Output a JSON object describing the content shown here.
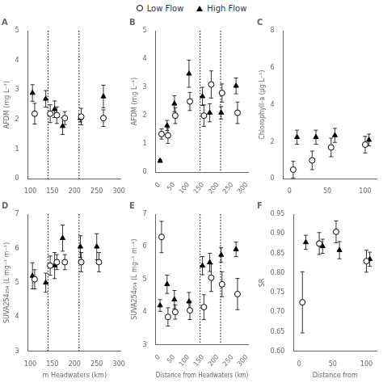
{
  "chart_data": [
    {
      "type": "scatter",
      "title": "A",
      "ylabel": "AFDM (mg L⁻¹)",
      "legend": "top",
      "grid": false,
      "xlim": [
        95,
        305
      ],
      "xticks": [
        100,
        150,
        200,
        250,
        300
      ],
      "ylim": [
        0,
        5
      ],
      "yticks": [
        0,
        1,
        2,
        3,
        4,
        5
      ],
      "vlines": [
        140,
        210
      ],
      "series": [
        {
          "name": "Low Flow",
          "color": "#000000",
          "marker": "circle",
          "x": [
            110,
            145,
            160,
            178,
            215,
            265
          ],
          "values": [
            2.2,
            2.2,
            2.15,
            2.05,
            2.1,
            2.05
          ],
          "yerr": [
            0.35,
            0.3,
            0.28,
            0.22,
            0.28,
            0.28
          ]
        },
        {
          "name": "High Flow",
          "color": "#000000",
          "marker": "triangle",
          "x": [
            105,
            135,
            155,
            173,
            213,
            265
          ],
          "values": [
            2.9,
            2.7,
            2.35,
            1.78,
            2.05,
            2.78
          ],
          "yerr": [
            0.28,
            0.28,
            0.28,
            0.28,
            0.13,
            0.38
          ]
        }
      ]
    },
    {
      "type": "scatter",
      "title": "B",
      "ylabel": "AFDM (mg L⁻¹)",
      "grid": false,
      "xlim": [
        -12,
        305
      ],
      "xticks": [
        0,
        50,
        100,
        150,
        200,
        250,
        300
      ],
      "ylim": [
        0,
        5
      ],
      "yticks": [
        0,
        1,
        2,
        3,
        4,
        5
      ],
      "vlines": [
        140,
        210
      ],
      "series": [
        {
          "name": "Low Flow",
          "color": "#000000",
          "marker": "circle",
          "x": [
            8,
            30,
            55,
            105,
            153,
            178,
            215,
            268
          ],
          "values": [
            1.35,
            1.3,
            2.0,
            2.5,
            2.0,
            3.1,
            2.8,
            2.1
          ],
          "yerr": [
            0.18,
            0.28,
            0.28,
            0.32,
            0.38,
            0.48,
            0.32,
            0.38
          ]
        },
        {
          "name": "High Flow",
          "color": "#000000",
          "marker": "triangle",
          "x": [
            3,
            27,
            52,
            102,
            148,
            173,
            212,
            263
          ],
          "values": [
            0.4,
            1.65,
            2.42,
            3.48,
            2.68,
            2.1,
            2.1,
            3.05
          ],
          "yerr": [
            0.05,
            0.18,
            0.28,
            0.48,
            0.32,
            0.32,
            0.22,
            0.28
          ]
        }
      ]
    },
    {
      "type": "scatter",
      "title": "C",
      "ylabel": "Chlorophyll-a (μg L⁻¹)",
      "grid": false,
      "xlim": [
        -8,
        115
      ],
      "xticks": [
        0,
        50,
        100
      ],
      "ylim": [
        0,
        8
      ],
      "yticks": [
        0,
        2,
        4,
        6,
        8
      ],
      "series": [
        {
          "name": "Low Flow",
          "color": "#000000",
          "marker": "circle",
          "x": [
            5,
            30,
            55,
            100
          ],
          "values": [
            0.5,
            1.0,
            1.7,
            1.85
          ],
          "yerr": [
            0.45,
            0.5,
            0.5,
            0.45
          ]
        },
        {
          "name": "High Flow",
          "color": "#000000",
          "marker": "triangle",
          "x": [
            10,
            35,
            60,
            105
          ],
          "values": [
            2.25,
            2.25,
            2.35,
            2.1
          ],
          "yerr": [
            0.38,
            0.38,
            0.38,
            0.32
          ]
        }
      ]
    },
    {
      "type": "scatter",
      "title": "D",
      "ylabel": "SUVA254₂₅₄ (L mg⁻¹ m⁻¹)",
      "xlabel": "m Headwaters (km)",
      "grid": false,
      "xlim": [
        95,
        305
      ],
      "xticks": [
        100,
        150,
        200,
        250,
        300
      ],
      "ylim": [
        3,
        7
      ],
      "yticks": [
        3,
        4,
        5,
        6,
        7
      ],
      "vlines": [
        140,
        210
      ],
      "series": [
        {
          "name": "Low Flow",
          "color": "#000000",
          "marker": "circle",
          "x": [
            110,
            145,
            160,
            178,
            215,
            255
          ],
          "values": [
            5.1,
            5.5,
            5.6,
            5.6,
            5.6,
            5.6
          ],
          "yerr": [
            0.28,
            0.28,
            0.22,
            0.22,
            0.28,
            0.28
          ]
        },
        {
          "name": "High Flow",
          "color": "#000000",
          "marker": "triangle",
          "x": [
            105,
            135,
            155,
            173,
            213,
            250
          ],
          "values": [
            5.2,
            5.0,
            5.5,
            6.3,
            6.05,
            6.05
          ],
          "yerr": [
            0.38,
            0.28,
            0.38,
            0.38,
            0.32,
            0.38
          ]
        }
      ]
    },
    {
      "type": "scatter",
      "title": "E",
      "ylabel": "SUVA254₂₅₄ (L mg⁻¹ m⁻¹)",
      "xlabel": "Distance from Headwaters (km)",
      "grid": false,
      "xlim": [
        -12,
        305
      ],
      "xticks": [
        0,
        50,
        100,
        150,
        200,
        250,
        300
      ],
      "ylim": [
        3,
        7
      ],
      "yticks": [
        3,
        4,
        5,
        6,
        7
      ],
      "vlines": [
        140,
        210
      ],
      "series": [
        {
          "name": "Low Flow",
          "color": "#000000",
          "marker": "circle",
          "x": [
            8,
            30,
            55,
            105,
            153,
            178,
            215,
            268
          ],
          "values": [
            6.3,
            3.85,
            4.0,
            4.05,
            4.15,
            5.05,
            4.85,
            4.55
          ],
          "yerr": [
            0.48,
            0.28,
            0.22,
            0.28,
            0.38,
            0.42,
            0.38,
            0.48
          ]
        },
        {
          "name": "High Flow",
          "color": "#000000",
          "marker": "triangle",
          "x": [
            3,
            27,
            52,
            102,
            148,
            173,
            212,
            263
          ],
          "values": [
            4.2,
            4.85,
            4.38,
            4.32,
            5.42,
            5.52,
            5.75,
            5.92
          ],
          "yerr": [
            0.18,
            0.28,
            0.28,
            0.28,
            0.28,
            0.28,
            0.22,
            0.22
          ]
        }
      ]
    },
    {
      "type": "scatter",
      "title": "F",
      "ylabel": "SR",
      "xlabel": "Distance from",
      "grid": false,
      "xlim": [
        -8,
        115
      ],
      "xticks": [
        0,
        50,
        100
      ],
      "ylim": [
        0.6,
        0.95
      ],
      "yticks": [
        {
          "value": 0.6,
          "label": "0.60"
        },
        0.65,
        {
          "value": 0.7,
          "label": "0.70"
        },
        0.75,
        {
          "value": 0.8,
          "label": "0.80"
        },
        0.85,
        {
          "value": 0.9,
          "label": "0.90"
        },
        0.95
      ],
      "series": [
        {
          "name": "Low Flow",
          "color": "#000000",
          "marker": "circle",
          "x": [
            5,
            30,
            55,
            100
          ],
          "values": [
            0.725,
            0.875,
            0.905,
            0.83
          ],
          "yerr": [
            0.078,
            0.028,
            0.028,
            0.028
          ]
        },
        {
          "name": "High Flow",
          "color": "#000000",
          "marker": "triangle",
          "x": [
            10,
            35,
            60,
            105
          ],
          "values": [
            0.878,
            0.868,
            0.858,
            0.835
          ],
          "yerr": [
            0.018,
            0.018,
            0.022,
            0.018
          ]
        }
      ]
    }
  ]
}
